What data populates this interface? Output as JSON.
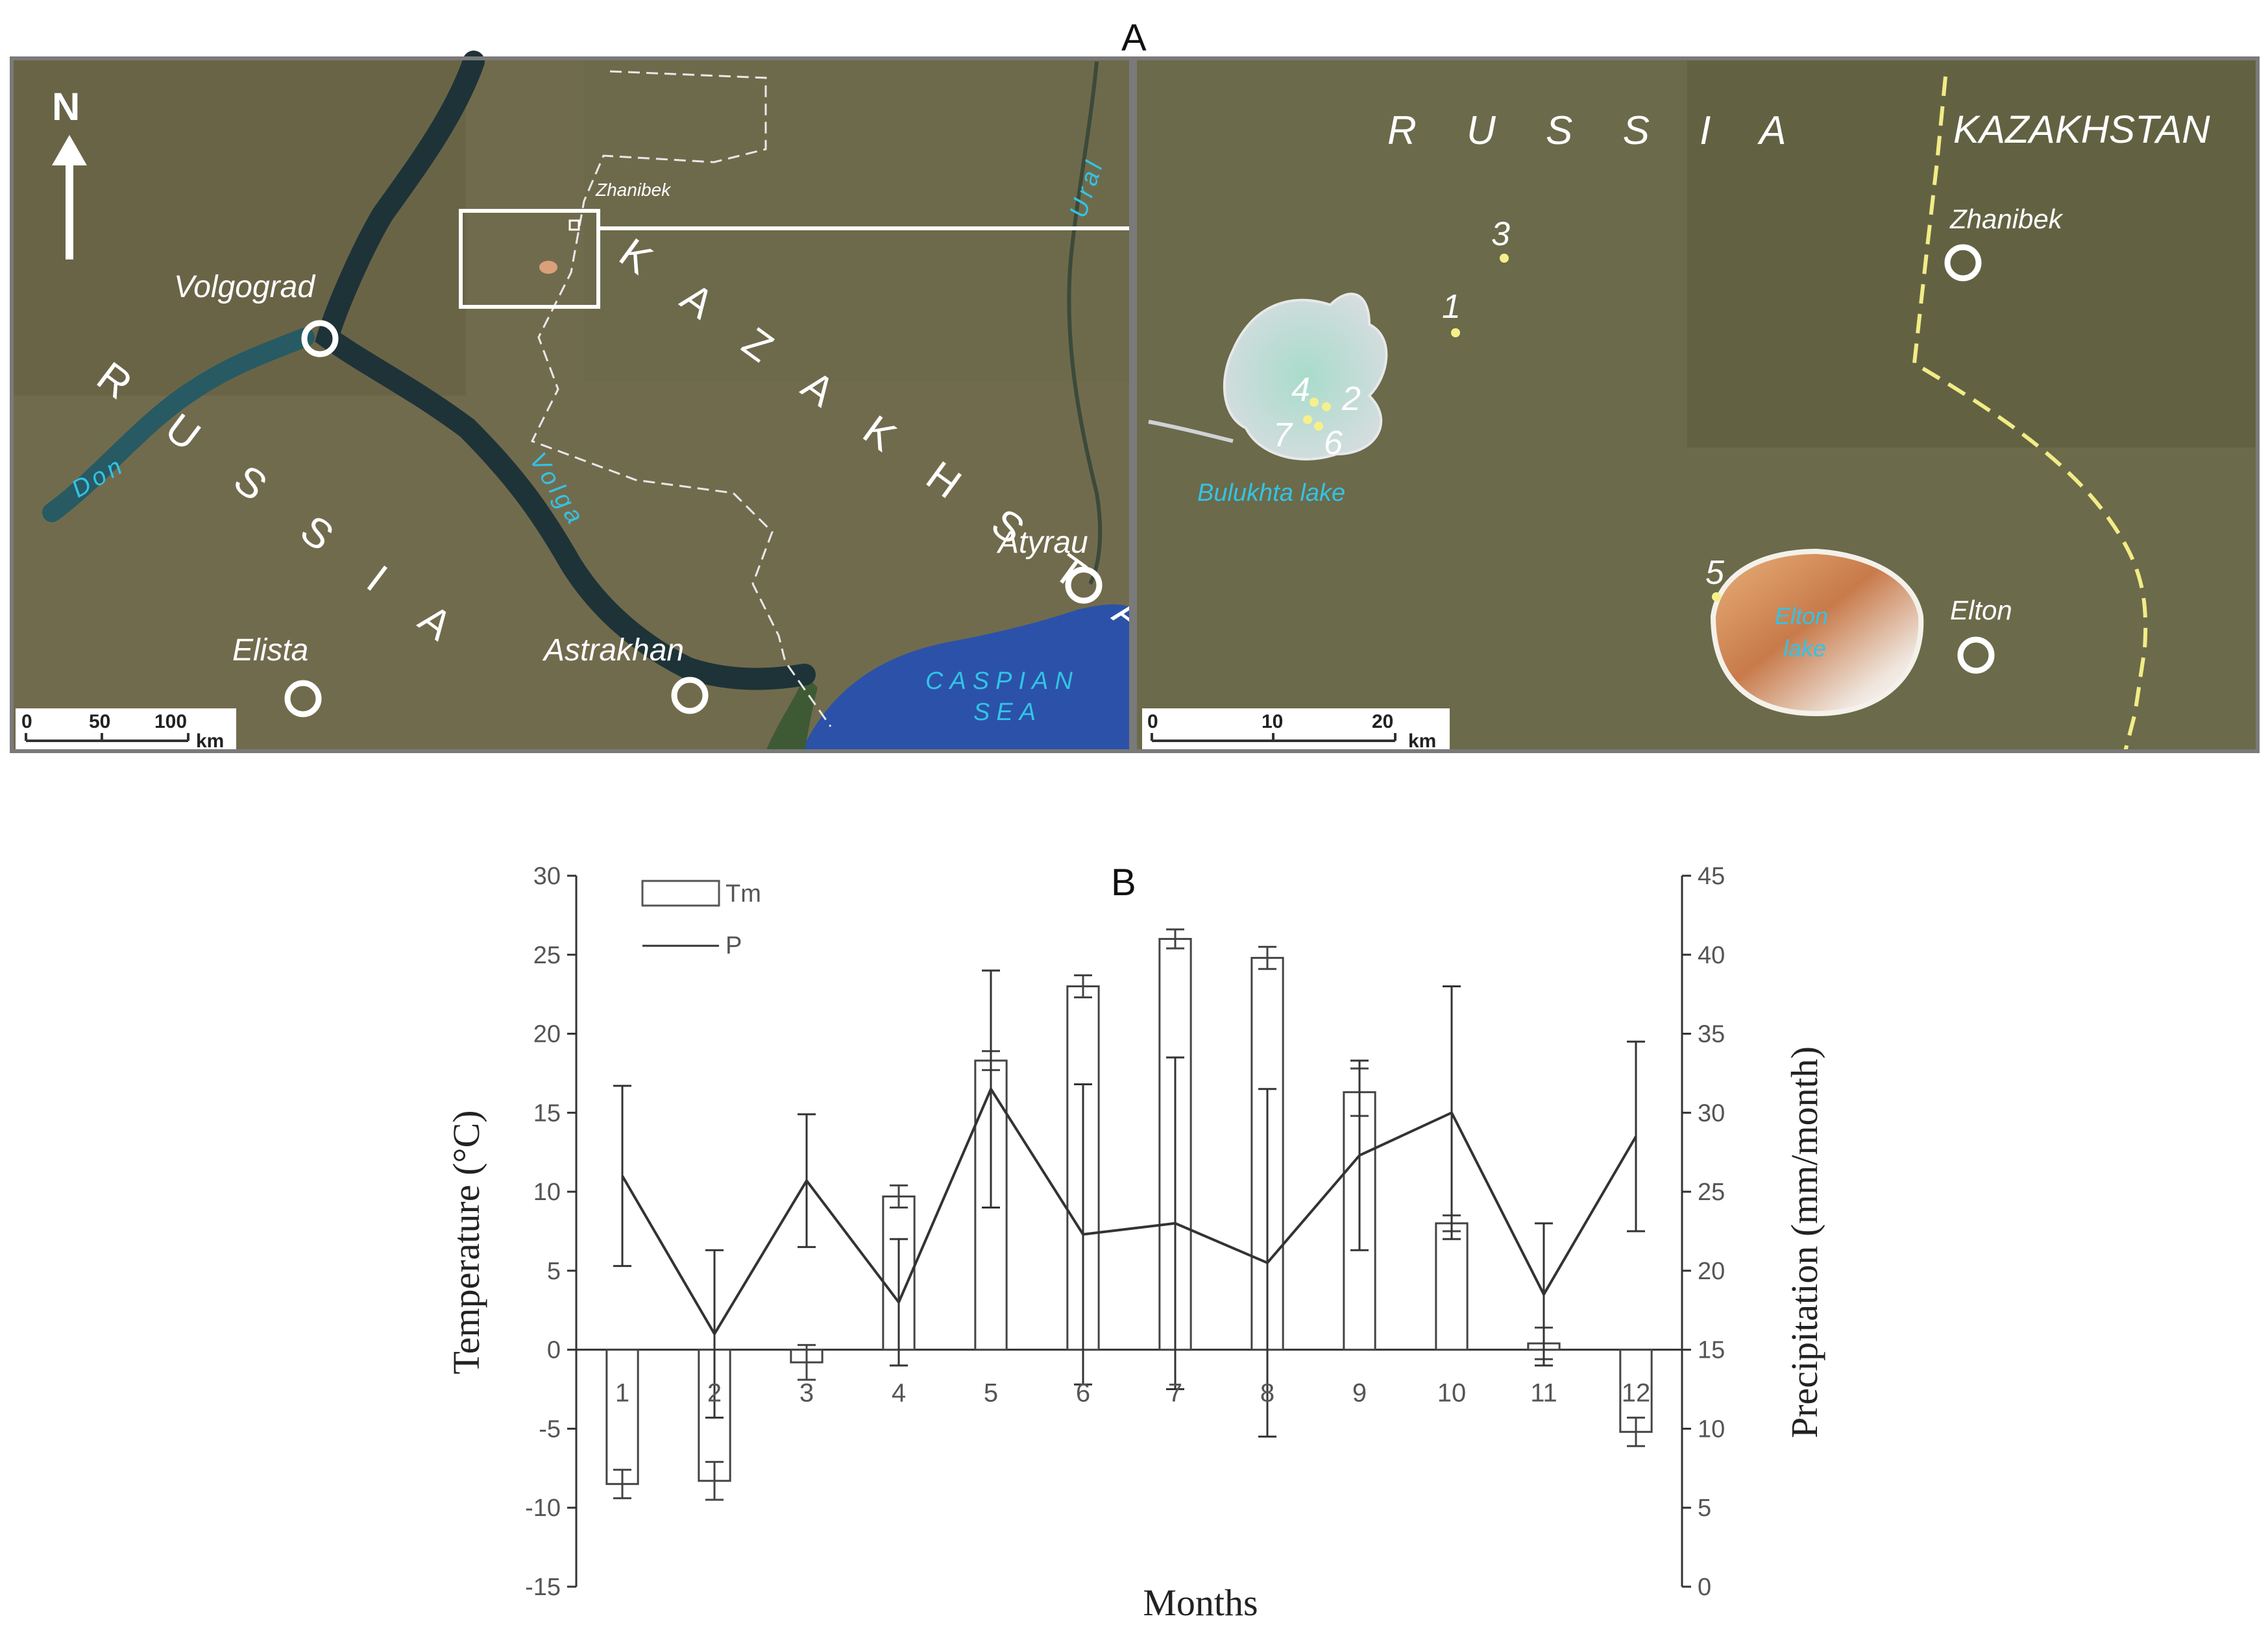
{
  "panel_a_label": "A",
  "panel_b_label": "B",
  "map_overview": {
    "north": "N",
    "country_labels": {
      "russia": "R U S S I A",
      "kazakhstan": "K A Z A K H S T A N"
    },
    "cities": {
      "volgograd": "Volgograd",
      "elista": "Elista",
      "astrakhan": "Astrakhan",
      "atyrau": "Atyrau",
      "zhanibek": "Zhanibek"
    },
    "water": {
      "caspian_1": "CASPIAN",
      "caspian_2": "SEA",
      "don": "Don",
      "volga": "Volga",
      "ural": "Ural"
    },
    "scale_ticks": [
      "0",
      "50",
      "100"
    ],
    "scale_unit": "km"
  },
  "map_detail": {
    "russia": "R U S S I A",
    "kazakhstan": "KAZAKHSTAN",
    "towns": {
      "zhanibek": "Zhanibek",
      "elton": "Elton"
    },
    "lakes": {
      "bulukhta": "Bulukhta lake",
      "elton_1": "Elton",
      "elton_2": "lake"
    },
    "sites": [
      "1",
      "2",
      "3",
      "4",
      "5",
      "6",
      "7"
    ],
    "scale_ticks": [
      "0",
      "10",
      "20"
    ],
    "scale_unit": "km"
  },
  "colors": {
    "land": "#6e6a4c",
    "land_dark": "#4f5436",
    "river": "#1f3a44",
    "sea": "#2b52a8",
    "water_label": "#33c3e6",
    "border": "#f2ec86",
    "point": "#f6f08a"
  },
  "chart_data": {
    "type": "bar+line",
    "categories": [
      "1",
      "2",
      "3",
      "4",
      "5",
      "6",
      "7",
      "8",
      "9",
      "10",
      "11",
      "12"
    ],
    "xlabel": "Months",
    "ylabel_left": "Temperature (°C)",
    "ylabel_right": "Precipitation (mm/month)",
    "y_left_range": [
      -15,
      30
    ],
    "y_left_ticks": [
      "30",
      "25",
      "20",
      "15",
      "10",
      "5",
      "0",
      "-5",
      "-10",
      "-15"
    ],
    "y_right_range": [
      0,
      45
    ],
    "y_right_ticks": [
      "45",
      "40",
      "35",
      "30",
      "25",
      "20",
      "15",
      "10",
      "5",
      "0"
    ],
    "grid": false,
    "legend_position": "top-left",
    "series": [
      {
        "name": "Tm",
        "type": "bar",
        "axis": "left",
        "values": [
          -8.5,
          -8.3,
          -0.8,
          9.7,
          18.3,
          23.0,
          26.0,
          24.8,
          16.3,
          8.0,
          0.4,
          -5.2
        ],
        "error": [
          0.9,
          1.2,
          1.1,
          0.7,
          0.6,
          0.7,
          0.6,
          0.7,
          1.5,
          0.5,
          1.0,
          0.9
        ]
      },
      {
        "name": "P",
        "type": "line",
        "axis": "right",
        "values": [
          26.0,
          16.0,
          25.7,
          18.0,
          31.5,
          22.3,
          23.0,
          20.5,
          27.3,
          30.0,
          18.5,
          28.5
        ],
        "error": [
          5.7,
          5.3,
          4.2,
          4.0,
          7.5,
          9.5,
          10.5,
          11.0,
          6.0,
          8.0,
          4.5,
          6.0
        ]
      }
    ]
  }
}
